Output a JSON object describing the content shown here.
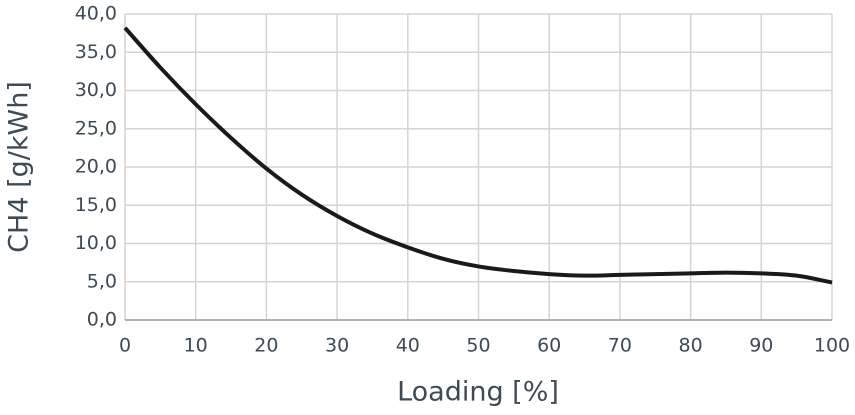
{
  "chart_data": {
    "type": "line",
    "x_label": "Loading [%]",
    "y_label": "CH4 [g/kWh]",
    "x": [
      0,
      5,
      10,
      15,
      20,
      25,
      30,
      35,
      40,
      45,
      50,
      55,
      60,
      65,
      70,
      75,
      80,
      85,
      90,
      95,
      100
    ],
    "series": [
      {
        "name": "CH4",
        "color": "#1a1a1a",
        "values": [
          38.2,
          33.0,
          28.2,
          23.8,
          19.8,
          16.4,
          13.6,
          11.3,
          9.5,
          8.0,
          7.0,
          6.4,
          6.0,
          5.8,
          5.9,
          6.0,
          6.1,
          6.2,
          6.1,
          5.8,
          4.9
        ]
      }
    ],
    "xlim": [
      0,
      100
    ],
    "xticks": [
      0,
      10,
      20,
      30,
      40,
      50,
      60,
      70,
      80,
      90,
      100
    ],
    "ylim": [
      0,
      40
    ],
    "yticks": [
      {
        "value": 0,
        "label": "0,0"
      },
      {
        "value": 5,
        "label": "5,0"
      },
      {
        "value": 10,
        "label": "10,0"
      },
      {
        "value": 15,
        "label": "15,0"
      },
      {
        "value": 20,
        "label": "20,0"
      },
      {
        "value": 25,
        "label": "25,0"
      },
      {
        "value": 30,
        "label": "30,0"
      },
      {
        "value": 35,
        "label": "35,0"
      },
      {
        "value": 40,
        "label": "40,0"
      }
    ],
    "grid": true
  }
}
